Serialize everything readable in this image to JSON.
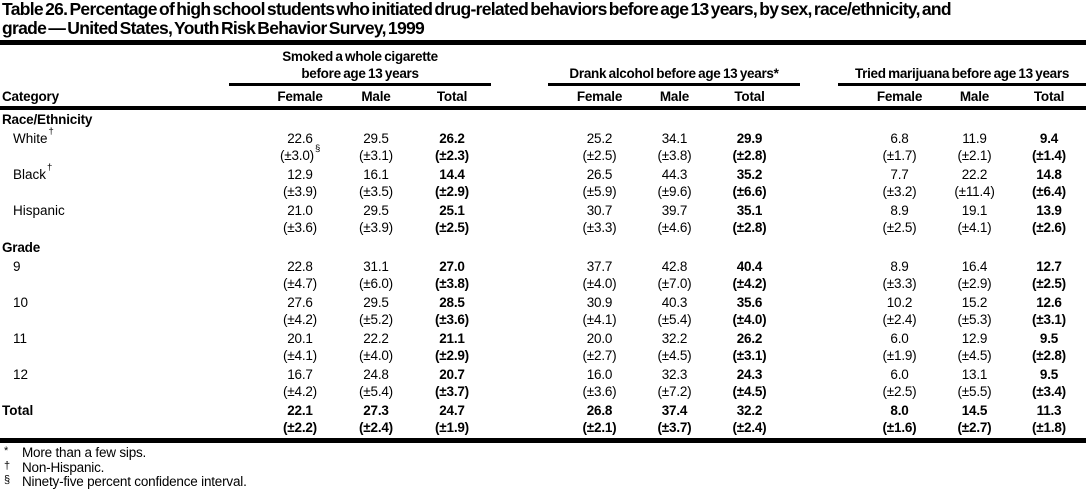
{
  "colors": {
    "text": "#000000",
    "background": "#ffffff",
    "rule": "#000000"
  },
  "title": {
    "line1": "Table 26. Percentage of high school students who initiated drug-related behaviors before age 13 years, by sex, race/ethnicity, and",
    "line2": "grade — United States, Youth Risk Behavior Survey, 1999"
  },
  "table": {
    "category_header": "Category",
    "groups": [
      {
        "label_top": "Smoked a whole cigarette",
        "label": "before age 13 years",
        "columns": [
          "Female",
          "Male",
          "Total"
        ]
      },
      {
        "label": "Drank alcohol before age 13 years*",
        "columns": [
          "Female",
          "Male",
          "Total"
        ]
      },
      {
        "label": "Tried marijuana before age 13 years",
        "columns": [
          "Female",
          "Male",
          "Total"
        ]
      }
    ],
    "sections": [
      {
        "header": "Race/Ethnicity",
        "rows": [
          {
            "label": "White",
            "sup": "†",
            "indent": true,
            "cells": [
              {
                "v": "22.6",
                "ci": "(±3.0)",
                "ci_sup": "§"
              },
              {
                "v": "29.5",
                "ci": "(±3.1)"
              },
              {
                "v": "26.2",
                "ci": "(±2.3)"
              },
              {
                "v": "25.2",
                "ci": "(±2.5)"
              },
              {
                "v": "34.1",
                "ci": "(±3.8)"
              },
              {
                "v": "29.9",
                "ci": "(±2.8)"
              },
              {
                "v": "6.8",
                "ci": "(±1.7)"
              },
              {
                "v": "11.9",
                "ci": "(±2.1)"
              },
              {
                "v": "9.4",
                "ci": "(±1.4)"
              }
            ]
          },
          {
            "label": "Black",
            "sup": "†",
            "indent": true,
            "cells": [
              {
                "v": "12.9",
                "ci": "(±3.9)"
              },
              {
                "v": "16.1",
                "ci": "(±3.5)"
              },
              {
                "v": "14.4",
                "ci": "(±2.9)"
              },
              {
                "v": "26.5",
                "ci": "(±5.9)"
              },
              {
                "v": "44.3",
                "ci": "(±9.6)"
              },
              {
                "v": "35.2",
                "ci": "(±6.6)"
              },
              {
                "v": "7.7",
                "ci": "(±3.2)"
              },
              {
                "v": "22.2",
                "ci": "(±11.4)"
              },
              {
                "v": "14.8",
                "ci": "(±6.4)"
              }
            ]
          },
          {
            "label": "Hispanic",
            "indent": true,
            "cells": [
              {
                "v": "21.0",
                "ci": "(±3.6)"
              },
              {
                "v": "29.5",
                "ci": "(±3.9)"
              },
              {
                "v": "25.1",
                "ci": "(±2.5)"
              },
              {
                "v": "30.7",
                "ci": "(±3.3)"
              },
              {
                "v": "39.7",
                "ci": "(±4.6)"
              },
              {
                "v": "35.1",
                "ci": "(±2.8)"
              },
              {
                "v": "8.9",
                "ci": "(±2.5)"
              },
              {
                "v": "19.1",
                "ci": "(±4.1)"
              },
              {
                "v": "13.9",
                "ci": "(±2.6)"
              }
            ]
          }
        ]
      },
      {
        "header": "Grade",
        "rows": [
          {
            "label": "9",
            "indent": true,
            "cells": [
              {
                "v": "22.8",
                "ci": "(±4.7)"
              },
              {
                "v": "31.1",
                "ci": "(±6.0)"
              },
              {
                "v": "27.0",
                "ci": "(±3.8)"
              },
              {
                "v": "37.7",
                "ci": "(±4.0)"
              },
              {
                "v": "42.8",
                "ci": "(±7.0)"
              },
              {
                "v": "40.4",
                "ci": "(±4.2)"
              },
              {
                "v": "8.9",
                "ci": "(±3.3)"
              },
              {
                "v": "16.4",
                "ci": "(±2.9)"
              },
              {
                "v": "12.7",
                "ci": "(±2.5)"
              }
            ]
          },
          {
            "label": "10",
            "indent": true,
            "cells": [
              {
                "v": "27.6",
                "ci": "(±4.2)"
              },
              {
                "v": "29.5",
                "ci": "(±5.2)"
              },
              {
                "v": "28.5",
                "ci": "(±3.6)"
              },
              {
                "v": "30.9",
                "ci": "(±4.1)"
              },
              {
                "v": "40.3",
                "ci": "(±5.4)"
              },
              {
                "v": "35.6",
                "ci": "(±4.0)"
              },
              {
                "v": "10.2",
                "ci": "(±2.4)"
              },
              {
                "v": "15.2",
                "ci": "(±5.3)"
              },
              {
                "v": "12.6",
                "ci": "(±3.1)"
              }
            ]
          },
          {
            "label": "11",
            "indent": true,
            "cells": [
              {
                "v": "20.1",
                "ci": "(±4.1)"
              },
              {
                "v": "22.2",
                "ci": "(±4.0)"
              },
              {
                "v": "21.1",
                "ci": "(±2.9)"
              },
              {
                "v": "20.0",
                "ci": "(±2.7)"
              },
              {
                "v": "32.2",
                "ci": "(±4.5)"
              },
              {
                "v": "26.2",
                "ci": "(±3.1)"
              },
              {
                "v": "6.0",
                "ci": "(±1.9)"
              },
              {
                "v": "12.9",
                "ci": "(±4.5)"
              },
              {
                "v": "9.5",
                "ci": "(±2.8)"
              }
            ]
          },
          {
            "label": "12",
            "indent": true,
            "cells": [
              {
                "v": "16.7",
                "ci": "(±4.2)"
              },
              {
                "v": "24.8",
                "ci": "(±5.4)"
              },
              {
                "v": "20.7",
                "ci": "(±3.7)"
              },
              {
                "v": "16.0",
                "ci": "(±3.6)"
              },
              {
                "v": "32.3",
                "ci": "(±7.2)"
              },
              {
                "v": "24.3",
                "ci": "(±4.5)"
              },
              {
                "v": "6.0",
                "ci": "(±2.5)"
              },
              {
                "v": "13.1",
                "ci": "(±5.5)"
              },
              {
                "v": "9.5",
                "ci": "(±3.4)"
              }
            ]
          }
        ]
      }
    ],
    "total_row": {
      "label": "Total",
      "cells": [
        {
          "v": "22.1",
          "ci": "(±2.2)"
        },
        {
          "v": "27.3",
          "ci": "(±2.4)"
        },
        {
          "v": "24.7",
          "ci": "(±1.9)"
        },
        {
          "v": "26.8",
          "ci": "(±2.1)"
        },
        {
          "v": "37.4",
          "ci": "(±3.7)"
        },
        {
          "v": "32.2",
          "ci": "(±2.4)"
        },
        {
          "v": "8.0",
          "ci": "(±1.6)"
        },
        {
          "v": "14.5",
          "ci": "(±2.7)"
        },
        {
          "v": "11.3",
          "ci": "(±1.8)"
        }
      ]
    }
  },
  "footnotes": [
    {
      "marker": "*",
      "text": "More than a few sips."
    },
    {
      "marker": "†",
      "text": "Non-Hispanic."
    },
    {
      "marker": "§",
      "text": "Ninety-five percent confidence interval."
    }
  ]
}
